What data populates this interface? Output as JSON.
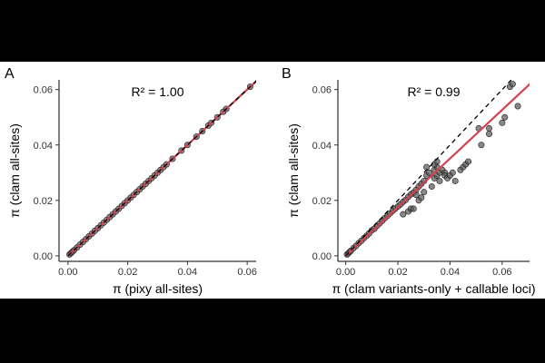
{
  "colors": {
    "point": "#555555",
    "fit_line": "#d2434e",
    "identity_line": "#000000",
    "background": "#000000"
  },
  "chart_data": [
    {
      "panel_label": "A",
      "type": "scatter",
      "annotation": "R² = 1.00",
      "xlabel": "π (pixy all-sites)",
      "ylabel": "π (clam all-sites)",
      "xlim": [
        -0.003,
        0.063
      ],
      "ylim": [
        -0.002,
        0.0635
      ],
      "xticks": [
        "0.00",
        "0.02",
        "0.04",
        "0.06"
      ],
      "yticks": [
        "0.00",
        "0.02",
        "0.04",
        "0.06"
      ],
      "identity_line": true,
      "fit_line": {
        "slope": 1.0,
        "intercept": 0.0
      },
      "points": [
        [
          0.0005,
          0.0005
        ],
        [
          0.001,
          0.001
        ],
        [
          0.0015,
          0.0015
        ],
        [
          0.002,
          0.002
        ],
        [
          0.003,
          0.003
        ],
        [
          0.004,
          0.004
        ],
        [
          0.005,
          0.005
        ],
        [
          0.006,
          0.006
        ],
        [
          0.007,
          0.007
        ],
        [
          0.008,
          0.008
        ],
        [
          0.009,
          0.009
        ],
        [
          0.01,
          0.01
        ],
        [
          0.011,
          0.011
        ],
        [
          0.012,
          0.012
        ],
        [
          0.013,
          0.013
        ],
        [
          0.014,
          0.014
        ],
        [
          0.015,
          0.015
        ],
        [
          0.016,
          0.016
        ],
        [
          0.017,
          0.017
        ],
        [
          0.018,
          0.018
        ],
        [
          0.019,
          0.019
        ],
        [
          0.02,
          0.02
        ],
        [
          0.021,
          0.021
        ],
        [
          0.022,
          0.022
        ],
        [
          0.023,
          0.023
        ],
        [
          0.024,
          0.024
        ],
        [
          0.025,
          0.025
        ],
        [
          0.026,
          0.026
        ],
        [
          0.027,
          0.027
        ],
        [
          0.028,
          0.028
        ],
        [
          0.029,
          0.029
        ],
        [
          0.03,
          0.03
        ],
        [
          0.031,
          0.031
        ],
        [
          0.032,
          0.032
        ],
        [
          0.033,
          0.033
        ],
        [
          0.035,
          0.035
        ],
        [
          0.038,
          0.038
        ],
        [
          0.04,
          0.04
        ],
        [
          0.043,
          0.043
        ],
        [
          0.045,
          0.045
        ],
        [
          0.047,
          0.047
        ],
        [
          0.048,
          0.048
        ],
        [
          0.05,
          0.05
        ],
        [
          0.052,
          0.052
        ],
        [
          0.053,
          0.053
        ],
        [
          0.061,
          0.061
        ]
      ]
    },
    {
      "panel_label": "B",
      "type": "scatter",
      "annotation": "R² = 0.99",
      "xlabel": "π (clam variants-only + callable loci)",
      "ylabel": "π (clam all-sites)",
      "xlim": [
        -0.003,
        0.0705
      ],
      "ylim": [
        -0.002,
        0.0635
      ],
      "xticks": [
        "0.00",
        "0.02",
        "0.04",
        "0.06"
      ],
      "yticks": [
        "0.00",
        "0.02",
        "0.04",
        "0.06"
      ],
      "identity_line": true,
      "fit_line": {
        "slope": 0.878,
        "intercept": 0.0
      },
      "points": [
        [
          0.0005,
          0.0005
        ],
        [
          0.001,
          0.0009
        ],
        [
          0.0015,
          0.0014
        ],
        [
          0.002,
          0.0018
        ],
        [
          0.003,
          0.0028
        ],
        [
          0.004,
          0.0036
        ],
        [
          0.005,
          0.0046
        ],
        [
          0.006,
          0.0054
        ],
        [
          0.007,
          0.0064
        ],
        [
          0.008,
          0.0072
        ],
        [
          0.009,
          0.0081
        ],
        [
          0.01,
          0.0092
        ],
        [
          0.011,
          0.0098
        ],
        [
          0.012,
          0.0108
        ],
        [
          0.013,
          0.0117
        ],
        [
          0.014,
          0.0126
        ],
        [
          0.015,
          0.0136
        ],
        [
          0.016,
          0.0144
        ],
        [
          0.017,
          0.0153
        ],
        [
          0.018,
          0.0162
        ],
        [
          0.019,
          0.017
        ],
        [
          0.02,
          0.0178
        ],
        [
          0.021,
          0.0186
        ],
        [
          0.022,
          0.0195
        ],
        [
          0.023,
          0.0202
        ],
        [
          0.024,
          0.0213
        ],
        [
          0.025,
          0.0222
        ],
        [
          0.026,
          0.0228
        ],
        [
          0.027,
          0.0238
        ],
        [
          0.028,
          0.025
        ],
        [
          0.029,
          0.026
        ],
        [
          0.03,
          0.027
        ],
        [
          0.031,
          0.029
        ],
        [
          0.032,
          0.03
        ],
        [
          0.034,
          0.031
        ],
        [
          0.035,
          0.032
        ],
        [
          0.022,
          0.015
        ],
        [
          0.024,
          0.016
        ],
        [
          0.025,
          0.017
        ],
        [
          0.026,
          0.017
        ],
        [
          0.028,
          0.02
        ],
        [
          0.027,
          0.022
        ],
        [
          0.029,
          0.021
        ],
        [
          0.03,
          0.023
        ],
        [
          0.033,
          0.025
        ],
        [
          0.034,
          0.028
        ],
        [
          0.035,
          0.029
        ],
        [
          0.036,
          0.03
        ],
        [
          0.037,
          0.031
        ],
        [
          0.038,
          0.03
        ],
        [
          0.036,
          0.027
        ],
        [
          0.038,
          0.029
        ],
        [
          0.039,
          0.028
        ],
        [
          0.04,
          0.029
        ],
        [
          0.041,
          0.03
        ],
        [
          0.042,
          0.027
        ],
        [
          0.044,
          0.031
        ],
        [
          0.045,
          0.032
        ],
        [
          0.046,
          0.033
        ],
        [
          0.047,
          0.034
        ],
        [
          0.052,
          0.04
        ],
        [
          0.051,
          0.046
        ],
        [
          0.055,
          0.044
        ],
        [
          0.055,
          0.046
        ],
        [
          0.06,
          0.048
        ],
        [
          0.061,
          0.05
        ],
        [
          0.063,
          0.061
        ],
        [
          0.064,
          0.062
        ],
        [
          0.066,
          0.054
        ],
        [
          0.031,
          0.032
        ],
        [
          0.034,
          0.033
        ],
        [
          0.035,
          0.034
        ]
      ]
    }
  ]
}
